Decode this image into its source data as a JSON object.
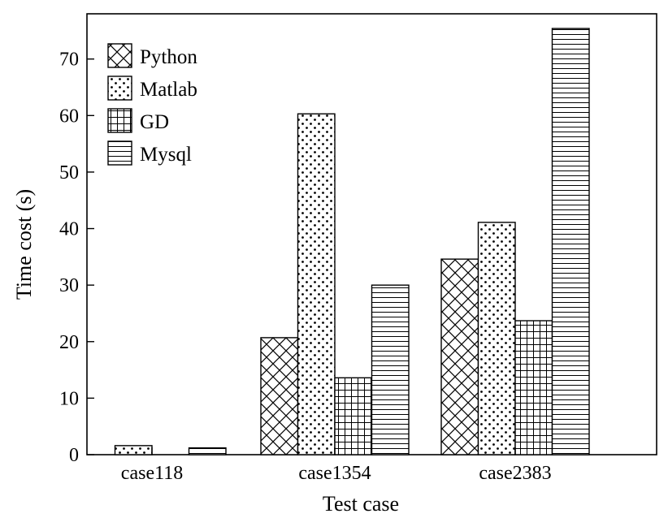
{
  "chart_data": {
    "type": "bar",
    "title": "",
    "xlabel": "Test case",
    "ylabel": "Time cost (s)",
    "ylim": [
      0,
      78
    ],
    "yticks": [
      0,
      10,
      20,
      30,
      40,
      50,
      60,
      70
    ],
    "categories": [
      "case118",
      "case1354",
      "case2383"
    ],
    "series": [
      {
        "name": "Python",
        "pattern": "crosshatch",
        "values": [
          0,
          20.7,
          34.6
        ]
      },
      {
        "name": "Matlab",
        "pattern": "dots",
        "values": [
          1.6,
          60.3,
          41.1
        ]
      },
      {
        "name": "GD",
        "pattern": "grid",
        "values": [
          0,
          13.6,
          23.7
        ]
      },
      {
        "name": "Mysql",
        "pattern": "horizontal-lines",
        "values": [
          1.2,
          30.0,
          75.4
        ]
      }
    ],
    "legend_position": "top-left",
    "colors": {
      "stroke": "#000000",
      "background": "#ffffff"
    }
  }
}
